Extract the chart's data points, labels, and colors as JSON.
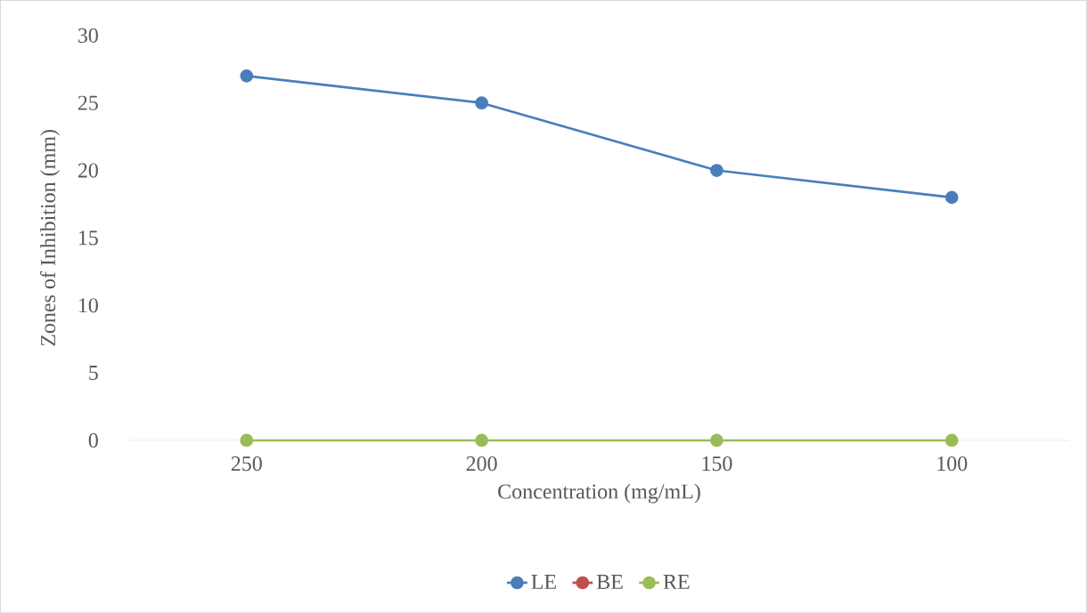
{
  "chart_data": {
    "type": "line",
    "xlabel": "Concentration (mg/mL)",
    "ylabel": "Zones of Inhibition (mm)",
    "categories": [
      "250",
      "200",
      "150",
      "100"
    ],
    "series": [
      {
        "name": "LE",
        "color": "#4a7ebb",
        "values": [
          27,
          25,
          20,
          18
        ]
      },
      {
        "name": "BE",
        "color": "#c0504d",
        "values": [
          null,
          null,
          null,
          null
        ]
      },
      {
        "name": "RE",
        "color": "#9bbb59",
        "values": [
          0,
          0,
          0,
          0
        ]
      }
    ],
    "ylim": [
      0,
      30
    ],
    "yticks": [
      0,
      5,
      10,
      15,
      20,
      25,
      30
    ],
    "grid": false,
    "legend": "bottom",
    "marker": "circle",
    "line_style": "solid"
  }
}
